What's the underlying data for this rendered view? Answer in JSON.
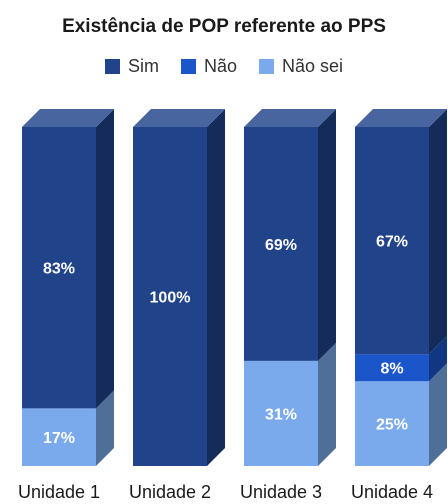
{
  "chart_data": {
    "type": "bar",
    "stacked": true,
    "title": "Existência de POP referente ao PPS",
    "categories": [
      "Unidade 1",
      "Unidade 2",
      "Unidade 3",
      "Unidade 4"
    ],
    "series": [
      {
        "name": "Sim",
        "color": "#21438a",
        "values": [
          83,
          100,
          69,
          67
        ]
      },
      {
        "name": "Não",
        "color": "#1a55c9",
        "values": [
          0,
          0,
          0,
          8
        ]
      },
      {
        "name": "Não sei",
        "color": "#7aaaeb",
        "values": [
          17,
          0,
          31,
          25
        ]
      }
    ],
    "data_labels": true,
    "value_suffix": "%",
    "ylim": [
      0,
      100
    ],
    "legend_position": "top",
    "grid": false
  }
}
